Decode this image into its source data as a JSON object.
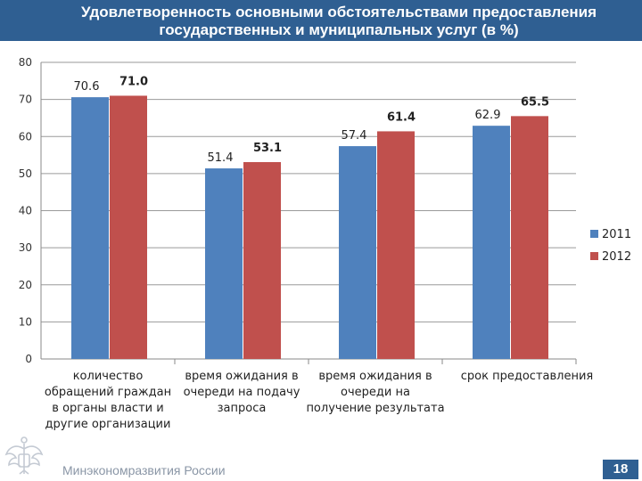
{
  "header": {
    "title_lines": [
      "Удовлетворенность основными обстоятельствами предоставления",
      "государственных и муниципальных услуг (в %)"
    ]
  },
  "chart_data": {
    "type": "bar",
    "title": "Удовлетворенность основными обстоятельствами предоставления государственных и муниципальных услуг (в %)",
    "categories": [
      [
        "количество",
        "обращений граждан",
        "в органы власти и",
        "другие организации"
      ],
      [
        "время ожидания в",
        "очереди на подачу",
        "запроса"
      ],
      [
        "время ожидания в",
        "очереди на",
        "получение результата"
      ],
      [
        "срок предоставления"
      ]
    ],
    "series": [
      {
        "name": "2011",
        "values": [
          70.6,
          51.4,
          57.4,
          62.9
        ],
        "color": "#4f81bd",
        "labels": [
          "70.6",
          "51.4",
          "57.4",
          "62.9"
        ]
      },
      {
        "name": "2012",
        "values": [
          71.0,
          53.1,
          61.4,
          65.5
        ],
        "color": "#c0504d",
        "labels": [
          "71.0",
          "53.1",
          "61.4",
          "65.5"
        ]
      }
    ],
    "ylim": [
      0,
      80
    ],
    "yticks": [
      "0",
      "10",
      "20",
      "30",
      "40",
      "50",
      "60",
      "70",
      "80"
    ],
    "grid": true,
    "legend_position": "right"
  },
  "footer": {
    "org_name": "Минэкономразвития России",
    "page_number": "18",
    "logo_icon": "coat-of-arms-icon"
  }
}
